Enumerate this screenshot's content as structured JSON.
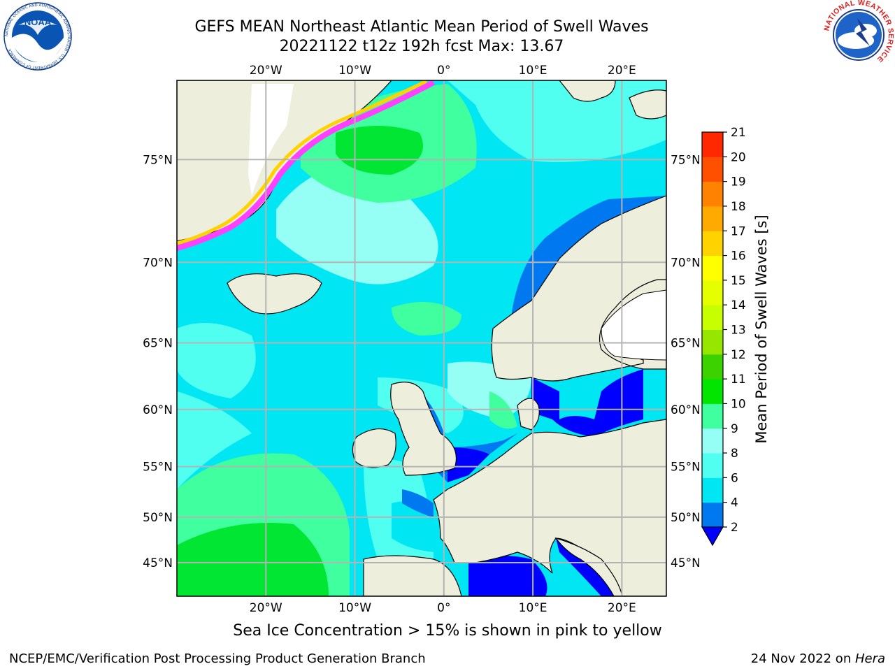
{
  "title": {
    "line1": "GEFS MEAN Northeast Atlantic Mean Period of Swell Waves",
    "line2": "20221122 t12z 192h fcst   Max: 13.67"
  },
  "footer": {
    "note": "Sea Ice Concentration > 15% is shown in pink to yellow",
    "credit_left": "NCEP/EMC/Verification Post Processing Product Generation Branch",
    "credit_date": "24 Nov 2022 on ",
    "credit_host": "Hera"
  },
  "logos": {
    "noaa": "NOAA",
    "noaa_ring": "NATIONAL OCEANIC AND ATMOSPHERIC ADMINISTRATION · U.S. DEPARTMENT OF COMMERCE",
    "nws_ring": "NATIONAL WEATHER SERVICE"
  },
  "map": {
    "lon_range": [
      -30,
      25
    ],
    "lat_range": [
      41,
      78
    ],
    "lon_ticks": [
      {
        "value": -20,
        "label": "20°W"
      },
      {
        "value": -10,
        "label": "10°W"
      },
      {
        "value": 0,
        "label": "0°"
      },
      {
        "value": 10,
        "label": "10°E"
      },
      {
        "value": 20,
        "label": "20°E"
      }
    ],
    "lat_ticks": [
      {
        "value": 45,
        "label": "45°N"
      },
      {
        "value": 50,
        "label": "50°N"
      },
      {
        "value": 55,
        "label": "55°N"
      },
      {
        "value": 60,
        "label": "60°N"
      },
      {
        "value": 65,
        "label": "65°N"
      },
      {
        "value": 70,
        "label": "70°N"
      },
      {
        "value": 75,
        "label": "75°N"
      }
    ],
    "colors": {
      "land": "#eeeedc",
      "grid": "#b4b4b4",
      "sea_base": "#00e6f2",
      "sea_light": "#96fff5",
      "sea_mid": "#40ff9e",
      "sea_green": "#00e632",
      "sea_blue": "#0078f0",
      "sea_deep": "#0000ff",
      "ice_pink": "#ff40ff",
      "ice_yellow": "#ffd200"
    }
  },
  "colorbar": {
    "label": "Mean Period of Swell Waves [s]",
    "ticks": [
      "2",
      "4",
      "6",
      "8",
      "9",
      "10",
      "11",
      "12",
      "13",
      "14",
      "15",
      "16",
      "17",
      "18",
      "19",
      "20",
      "21"
    ],
    "colors": [
      "#0078f0",
      "#00e6f2",
      "#50fff0",
      "#96fff5",
      "#40ff9e",
      "#00e600",
      "#3cd200",
      "#96e600",
      "#c8ff00",
      "#e6ff00",
      "#ffff00",
      "#ffd200",
      "#ffaa00",
      "#ff8200",
      "#ff5000",
      "#ff2800"
    ],
    "extend_color": "#0000ff"
  }
}
